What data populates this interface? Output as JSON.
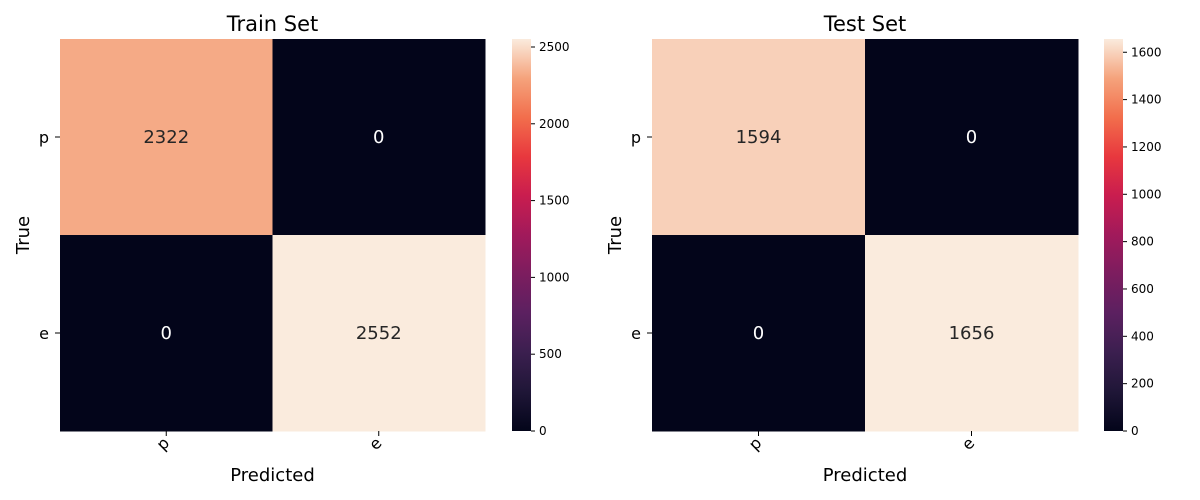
{
  "chart_data": [
    {
      "type": "heatmap",
      "title": "Train Set",
      "xlabel": "Predicted",
      "ylabel": "True",
      "x_categories": [
        "p",
        "e"
      ],
      "y_categories": [
        "p",
        "e"
      ],
      "values": [
        [
          2322,
          0
        ],
        [
          0,
          2552
        ]
      ],
      "colormap": "rocket",
      "colorbar": {
        "range": [
          0,
          2552
        ],
        "ticks": [
          0,
          500,
          1000,
          1500,
          2000,
          2500
        ]
      }
    },
    {
      "type": "heatmap",
      "title": "Test Set",
      "xlabel": "Predicted",
      "ylabel": "True",
      "x_categories": [
        "p",
        "e"
      ],
      "y_categories": [
        "p",
        "e"
      ],
      "values": [
        [
          1594,
          0
        ],
        [
          0,
          1656
        ]
      ],
      "colormap": "rocket",
      "colorbar": {
        "range": [
          0,
          1656
        ],
        "ticks": [
          0,
          200,
          400,
          600,
          800,
          1000,
          1200,
          1400,
          1600
        ]
      }
    }
  ]
}
